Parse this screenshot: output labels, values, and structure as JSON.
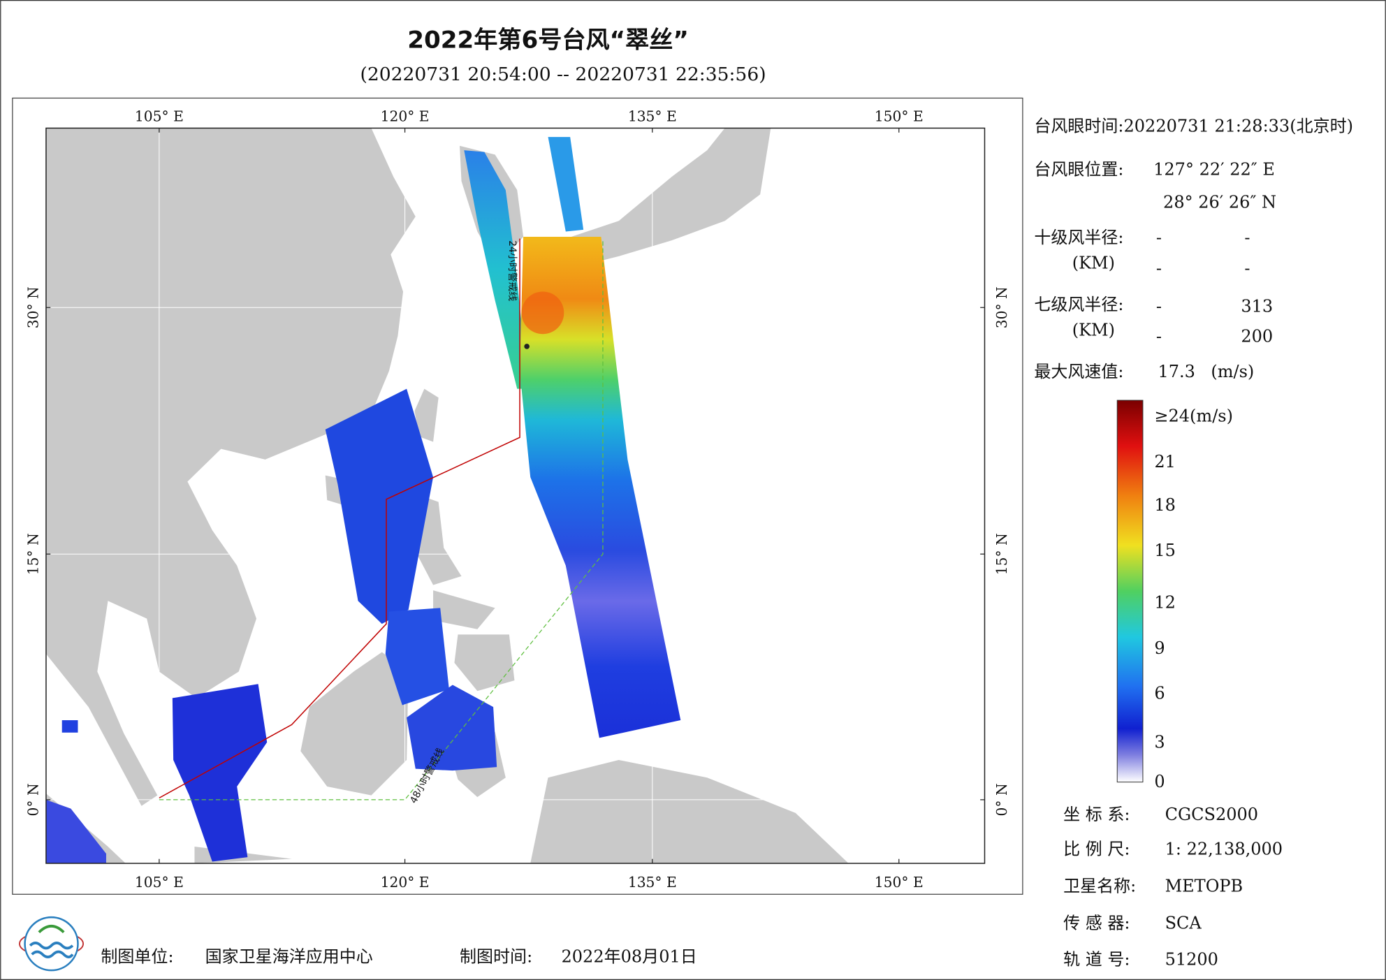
{
  "title": "2022年第6号台风“翠丝”",
  "subtitle": "(20220731 20:54:00 -- 20220731 22:35:56)",
  "map": {
    "lon_labels": [
      "105° E",
      "120° E",
      "135° E",
      "150° E"
    ],
    "lat_labels": [
      "30° N",
      "15° N",
      "0° N"
    ],
    "warning_24h": "24小时警戒线",
    "warning_48h": "48小时警戒线"
  },
  "info": {
    "eye_time": "台风眼时间:20220731 21:28:33(北京时)",
    "eye_position_label": "台风眼位置:",
    "eye_lon": "127° 22′ 22″ E",
    "eye_lat": "28° 26′ 26″ N",
    "r10_label": "十级风半径:",
    "km_label": "(KM)",
    "r10": [
      "-",
      "-",
      "-",
      "-"
    ],
    "r7_label": "七级风半径:",
    "r7": [
      "-",
      "313",
      "-",
      "200"
    ],
    "max_wind_label": "最大风速值:",
    "max_wind": "17.3",
    "max_wind_unit": "(m/s)"
  },
  "colorbar": {
    "labels": [
      "≥24(m/s)",
      "21",
      "18",
      "15",
      "12",
      "9",
      "6",
      "3",
      "0"
    ]
  },
  "meta": [
    {
      "label": "坐 标 系:",
      "value": "CGCS2000"
    },
    {
      "label": "比 例 尺:",
      "value": "1: 22,138,000"
    },
    {
      "label": "卫星名称:",
      "value": "METOPB"
    },
    {
      "label": "传 感 器:",
      "value": "SCA"
    },
    {
      "label": "轨 道 号:",
      "value": "51200"
    }
  ],
  "footer": {
    "unit_label": "制图单位:",
    "unit": "国家卫星海洋应用中心",
    "time_label": "制图时间:",
    "time": "2022年08月01日"
  }
}
